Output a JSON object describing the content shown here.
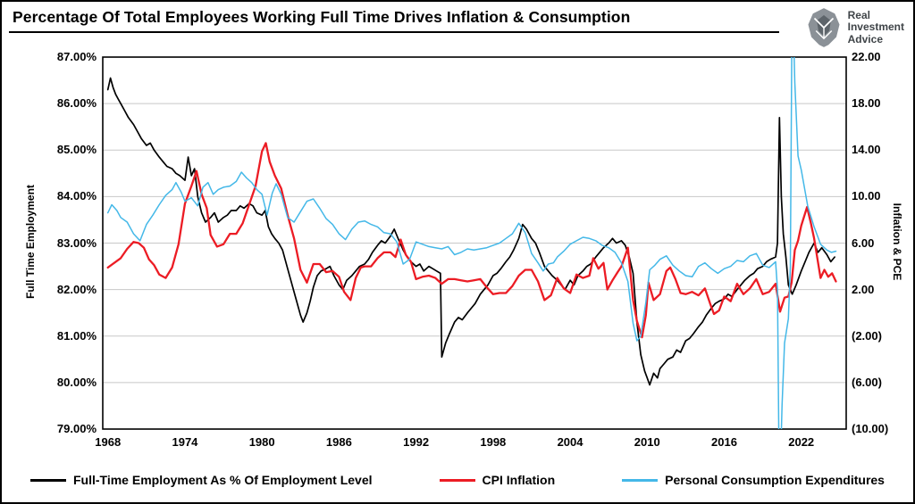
{
  "logo": {
    "lines": [
      "Real",
      "Investment",
      "Advice"
    ]
  },
  "chart_data": {
    "type": "line",
    "title": "Percentage Of Total Employees Working Full Time Drives Inflation & Consumption",
    "grid": "horizontal",
    "legend_position": "bottom",
    "left_axis": {
      "label": "Full Time Employment",
      "min": 79,
      "max": 87,
      "tick_values": [
        87,
        86,
        85,
        84,
        83,
        82,
        81,
        80,
        79
      ],
      "tick_labels": [
        "87.00%",
        "86.00%",
        "85.00%",
        "84.00%",
        "83.00%",
        "82.00%",
        "81.00%",
        "80.00%",
        "79.00%"
      ]
    },
    "right_axis": {
      "label": "Inflation & PCE",
      "min": -10,
      "max": 22,
      "tick_values": [
        22,
        18,
        14,
        10,
        6,
        2,
        -2,
        -6,
        -10
      ],
      "tick_labels": [
        "22.00",
        "18.00",
        "14.00",
        "10.00",
        "6.00",
        "2.00",
        "(2.00)",
        "(6.00)",
        "(10.00)"
      ]
    },
    "x_axis": {
      "min": 1967.6,
      "max": 2025.5,
      "tick_values": [
        1968,
        1974,
        1980,
        1986,
        1992,
        1998,
        2004,
        2010,
        2016,
        2022
      ],
      "tick_labels": [
        "1968",
        "1974",
        "1980",
        "1986",
        "1992",
        "1998",
        "2004",
        "2010",
        "2016",
        "2022"
      ]
    },
    "series": [
      {
        "id": "full-time-employment",
        "name": "Full-Time Employment As % Of Employment Level",
        "color": "#000000",
        "axis": "left",
        "stroke_width": 1.7,
        "x": [
          1968,
          1968.2,
          1968.4,
          1968.6,
          1968.8,
          1969,
          1969.3,
          1969.6,
          1970,
          1970.3,
          1970.6,
          1971,
          1971.3,
          1971.6,
          1972,
          1972.3,
          1972.6,
          1973,
          1973.3,
          1973.6,
          1974,
          1974.25,
          1974.5,
          1974.75,
          1975,
          1975.3,
          1975.6,
          1976,
          1976.3,
          1976.6,
          1977,
          1977.3,
          1977.6,
          1978,
          1978.3,
          1978.6,
          1979,
          1979.3,
          1979.6,
          1980,
          1980.25,
          1980.5,
          1980.75,
          1981,
          1981.3,
          1981.6,
          1982,
          1982.3,
          1982.6,
          1983,
          1983.2,
          1983.5,
          1983.75,
          1984,
          1984.3,
          1984.6,
          1985,
          1985.3,
          1985.6,
          1986,
          1986.3,
          1986.6,
          1987,
          1987.3,
          1987.6,
          1988,
          1988.3,
          1988.6,
          1989,
          1989.3,
          1989.6,
          1990,
          1990.3,
          1990.6,
          1991,
          1991.3,
          1991.6,
          1992,
          1992.3,
          1992.6,
          1993,
          1993.3,
          1993.6,
          1993.9,
          1994,
          1994.3,
          1994.6,
          1995,
          1995.3,
          1995.6,
          1996,
          1996.3,
          1996.6,
          1997,
          1997.3,
          1997.6,
          1998,
          1998.3,
          1998.6,
          1999,
          1999.3,
          1999.6,
          2000,
          2000.3,
          2000.6,
          2001,
          2001.3,
          2001.6,
          2002,
          2002.3,
          2002.6,
          2003,
          2003.3,
          2003.6,
          2004,
          2004.3,
          2004.6,
          2005,
          2005.3,
          2005.6,
          2006,
          2006.3,
          2006.6,
          2007,
          2007.3,
          2007.6,
          2008,
          2008.3,
          2008.6,
          2008.9,
          2009.2,
          2009.5,
          2009.8,
          2010,
          2010.2,
          2010.5,
          2010.8,
          2011,
          2011.3,
          2011.6,
          2012,
          2012.3,
          2012.6,
          2013,
          2013.3,
          2013.6,
          2014,
          2014.3,
          2014.6,
          2015,
          2015.3,
          2015.6,
          2016,
          2016.3,
          2016.6,
          2017,
          2017.3,
          2017.6,
          2018,
          2018.3,
          2018.6,
          2019,
          2019.3,
          2019.6,
          2020,
          2020.15,
          2020.3,
          2020.45,
          2020.6,
          2020.8,
          2021,
          2021.3,
          2021.6,
          2022,
          2022.3,
          2022.6,
          2023,
          2023.3,
          2023.6,
          2024,
          2024.3,
          2024.6
        ],
        "y": [
          86.3,
          86.55,
          86.35,
          86.2,
          86.1,
          86.0,
          85.85,
          85.7,
          85.55,
          85.4,
          85.25,
          85.1,
          85.15,
          85.0,
          84.85,
          84.75,
          84.65,
          84.6,
          84.5,
          84.45,
          84.35,
          84.85,
          84.45,
          84.6,
          84.0,
          83.65,
          83.45,
          83.55,
          83.65,
          83.45,
          83.55,
          83.6,
          83.7,
          83.7,
          83.8,
          83.75,
          83.85,
          83.8,
          83.65,
          83.6,
          83.7,
          83.35,
          83.2,
          83.1,
          83.0,
          82.85,
          82.45,
          82.15,
          81.85,
          81.45,
          81.3,
          81.5,
          81.75,
          82.05,
          82.3,
          82.4,
          82.45,
          82.5,
          82.3,
          82.1,
          82.0,
          82.2,
          82.3,
          82.4,
          82.5,
          82.55,
          82.65,
          82.8,
          82.95,
          83.05,
          83.0,
          83.15,
          83.3,
          83.1,
          82.85,
          82.7,
          82.6,
          82.5,
          82.55,
          82.4,
          82.5,
          82.45,
          82.4,
          82.35,
          80.55,
          80.85,
          81.05,
          81.3,
          81.4,
          81.35,
          81.5,
          81.6,
          81.7,
          81.9,
          82.0,
          82.1,
          82.3,
          82.35,
          82.45,
          82.6,
          82.7,
          82.85,
          83.1,
          83.4,
          83.3,
          83.1,
          83.0,
          82.8,
          82.5,
          82.4,
          82.3,
          82.2,
          82.1,
          82.0,
          82.2,
          82.1,
          82.3,
          82.4,
          82.5,
          82.55,
          82.7,
          82.8,
          82.9,
          83.0,
          83.1,
          83.0,
          83.05,
          82.95,
          82.7,
          82.35,
          81.3,
          80.6,
          80.25,
          80.1,
          79.95,
          80.2,
          80.1,
          80.3,
          80.4,
          80.5,
          80.55,
          80.7,
          80.65,
          80.9,
          80.95,
          81.05,
          81.2,
          81.3,
          81.45,
          81.6,
          81.7,
          81.75,
          81.8,
          81.9,
          81.85,
          82.0,
          82.1,
          82.2,
          82.3,
          82.35,
          82.45,
          82.5,
          82.6,
          82.65,
          82.7,
          83.0,
          85.7,
          84.0,
          83.2,
          82.7,
          82.1,
          81.9,
          82.1,
          82.4,
          82.6,
          82.8,
          83.0,
          82.8,
          82.9,
          82.75,
          82.6,
          82.7
        ]
      },
      {
        "id": "cpi-inflation",
        "name": "CPI Inflation",
        "color": "#ec1c24",
        "axis": "right",
        "stroke_width": 2.3,
        "x": [
          1968,
          1968.5,
          1969,
          1969.5,
          1970,
          1970.4,
          1970.8,
          1971.2,
          1971.6,
          1972,
          1972.5,
          1973,
          1973.5,
          1974,
          1974.5,
          1974.9,
          1975.3,
          1975.7,
          1976,
          1976.5,
          1977,
          1977.5,
          1978,
          1978.5,
          1979,
          1979.5,
          1980,
          1980.3,
          1980.6,
          1981,
          1981.5,
          1982,
          1982.5,
          1983,
          1983.5,
          1984,
          1984.5,
          1985,
          1985.5,
          1986,
          1986.4,
          1986.9,
          1987.3,
          1987.7,
          1988,
          1988.5,
          1989,
          1989.5,
          1990,
          1990.4,
          1990.8,
          1991.2,
          1991.6,
          1992,
          1992.5,
          1993,
          1993.5,
          1994,
          1994.5,
          1995,
          1995.5,
          1996,
          1996.5,
          1997,
          1997.5,
          1998,
          1998.5,
          1999,
          1999.5,
          2000,
          2000.5,
          2001,
          2001.5,
          2002,
          2002.5,
          2003,
          2003.5,
          2004,
          2004.5,
          2005,
          2005.5,
          2005.8,
          2006.2,
          2006.6,
          2006.9,
          2007.3,
          2007.7,
          2008,
          2008.5,
          2008.9,
          2009.2,
          2009.6,
          2009.9,
          2010.1,
          2010.5,
          2011,
          2011.5,
          2011.8,
          2012.2,
          2012.6,
          2013,
          2013.5,
          2014,
          2014.5,
          2014.9,
          2015.2,
          2015.6,
          2016,
          2016.5,
          2017,
          2017.5,
          2018,
          2018.5,
          2019,
          2019.5,
          2020,
          2020.35,
          2020.7,
          2021,
          2021.25,
          2021.5,
          2021.75,
          2022,
          2022.45,
          2022.75,
          2023,
          2023.5,
          2023.8,
          2024.1,
          2024.4,
          2024.7
        ],
        "y": [
          3.9,
          4.3,
          4.7,
          5.5,
          6.1,
          6.0,
          5.6,
          4.6,
          4.1,
          3.3,
          3.0,
          3.9,
          5.9,
          9.4,
          10.9,
          12.2,
          10.2,
          9.0,
          6.7,
          5.7,
          5.9,
          6.8,
          6.8,
          7.7,
          9.3,
          10.9,
          13.9,
          14.6,
          13.0,
          11.8,
          10.7,
          8.4,
          6.4,
          3.7,
          2.6,
          4.2,
          4.2,
          3.5,
          3.6,
          3.1,
          1.8,
          1.1,
          3.0,
          3.9,
          4.0,
          4.0,
          4.7,
          5.2,
          5.2,
          4.8,
          6.3,
          5.0,
          4.4,
          2.9,
          3.1,
          3.2,
          3.0,
          2.5,
          2.9,
          2.9,
          2.8,
          2.7,
          2.8,
          2.9,
          2.2,
          1.6,
          1.7,
          1.7,
          2.3,
          3.2,
          3.7,
          3.7,
          2.7,
          1.1,
          1.5,
          3.0,
          2.1,
          1.7,
          3.3,
          3.0,
          3.2,
          4.7,
          3.8,
          4.3,
          2.0,
          2.8,
          3.5,
          4.0,
          5.6,
          1.1,
          -0.7,
          -2.1,
          -0.2,
          2.6,
          1.1,
          1.6,
          3.6,
          3.9,
          2.9,
          1.7,
          1.6,
          1.8,
          1.5,
          2.1,
          0.8,
          -0.1,
          0.2,
          1.4,
          1.0,
          2.5,
          1.6,
          2.1,
          2.9,
          1.6,
          1.8,
          2.5,
          0.1,
          1.3,
          1.4,
          2.6,
          5.4,
          6.2,
          7.5,
          9.1,
          7.7,
          6.4,
          3.0,
          3.7,
          3.1,
          3.4,
          2.7
        ]
      },
      {
        "id": "pce",
        "name": "Personal Consumption Expenditures",
        "color": "#44b8e8",
        "axis": "right",
        "stroke_width": 1.5,
        "x": [
          1968,
          1968.3,
          1968.7,
          1969,
          1969.5,
          1970,
          1970.5,
          1971,
          1971.5,
          1972,
          1972.5,
          1973,
          1973.3,
          1973.7,
          1974,
          1974.5,
          1975,
          1975.4,
          1975.8,
          1976.2,
          1976.6,
          1977,
          1977.5,
          1978,
          1978.4,
          1978.8,
          1979.2,
          1979.6,
          1980,
          1980.4,
          1980.8,
          1981.1,
          1981.5,
          1982,
          1982.5,
          1983,
          1983.5,
          1984,
          1984.5,
          1985,
          1985.5,
          1986,
          1986.5,
          1987,
          1987.5,
          1988,
          1988.5,
          1989,
          1989.5,
          1990,
          1990.5,
          1991,
          1991.5,
          1992,
          1992.5,
          1993,
          1993.5,
          1994,
          1994.5,
          1995,
          1995.5,
          1996,
          1996.5,
          1997,
          1997.5,
          1998,
          1998.5,
          1999,
          1999.5,
          2000,
          2000.5,
          2001,
          2001.5,
          2001.9,
          2002.3,
          2002.7,
          2003,
          2003.5,
          2004,
          2004.5,
          2005,
          2005.5,
          2006,
          2006.5,
          2007,
          2007.5,
          2008,
          2008.5,
          2008.9,
          2009.2,
          2009.5,
          2009.9,
          2010.2,
          2010.6,
          2011,
          2011.5,
          2012,
          2012.5,
          2013,
          2013.5,
          2014,
          2014.5,
          2015,
          2015.5,
          2016,
          2016.5,
          2017,
          2017.5,
          2018,
          2018.5,
          2019,
          2019.5,
          2020,
          2020.15,
          2020.3,
          2020.5,
          2020.7,
          2021,
          2021.15,
          2021.3,
          2021.5,
          2021.75,
          2022,
          2022.5,
          2023,
          2023.5,
          2024,
          2024.35,
          2024.7
        ],
        "y": [
          8.6,
          9.3,
          8.8,
          8.2,
          7.8,
          6.8,
          6.2,
          7.6,
          8.4,
          9.3,
          10.1,
          10.6,
          11.2,
          10.4,
          9.6,
          9.9,
          9.2,
          10.8,
          11.2,
          10.2,
          10.6,
          10.8,
          10.9,
          11.3,
          12.1,
          11.6,
          11.2,
          10.6,
          10.2,
          8.4,
          10.3,
          11.1,
          10.2,
          8.2,
          7.8,
          8.7,
          9.6,
          9.8,
          9.0,
          8.1,
          7.6,
          6.8,
          6.3,
          7.2,
          7.8,
          7.9,
          7.6,
          7.4,
          6.9,
          6.8,
          6.1,
          4.2,
          4.6,
          6.1,
          5.9,
          5.7,
          5.6,
          5.5,
          5.7,
          5.0,
          5.2,
          5.5,
          5.4,
          5.5,
          5.6,
          5.8,
          6.0,
          6.4,
          6.8,
          7.7,
          6.9,
          5.1,
          4.3,
          3.6,
          4.2,
          4.3,
          4.8,
          5.3,
          5.9,
          6.2,
          6.5,
          6.4,
          6.2,
          5.8,
          5.6,
          5.2,
          4.3,
          2.7,
          -0.9,
          -2.4,
          -2.0,
          0.9,
          3.7,
          4.1,
          4.6,
          4.9,
          4.1,
          3.6,
          3.2,
          3.1,
          4.0,
          4.3,
          3.8,
          3.4,
          3.8,
          4.0,
          4.5,
          4.4,
          4.9,
          5.1,
          4.1,
          3.9,
          4.4,
          2.0,
          -16.5,
          -8.0,
          -2.6,
          -0.5,
          4.0,
          28.5,
          19.8,
          13.5,
          12.3,
          9.2,
          7.4,
          5.9,
          5.4,
          5.2,
          5.3
        ]
      }
    ]
  }
}
